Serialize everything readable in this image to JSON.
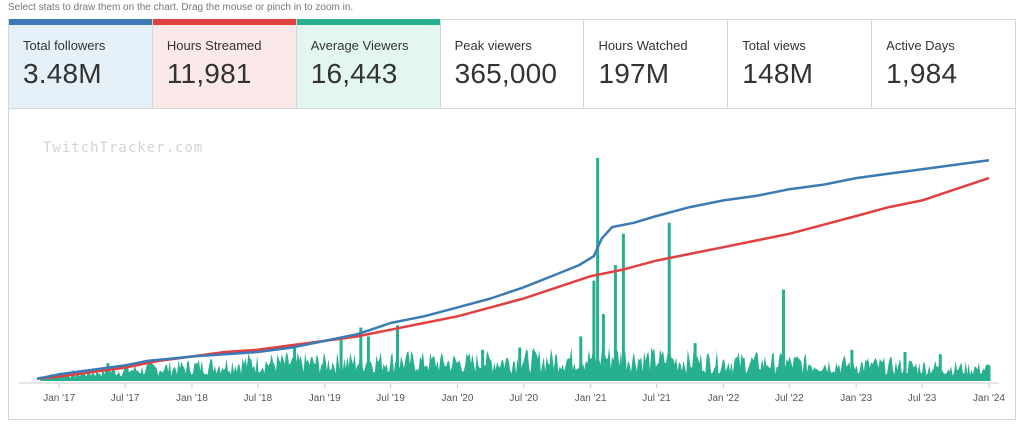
{
  "hint": "Select stats to draw them on the chart. Drag the mouse or pinch in to zoom in.",
  "stats": [
    {
      "label": "Total followers",
      "value": "3.48M",
      "accent": "#3c7ab5",
      "bg": "#e6f0f8",
      "selected": true
    },
    {
      "label": "Hours Streamed",
      "value": "11,981",
      "accent": "#e0403f",
      "bg": "#fbe8e8",
      "selected": true
    },
    {
      "label": "Average Viewers",
      "value": "16,443",
      "accent": "#27b08f",
      "bg": "#e4f6f0",
      "selected": true
    },
    {
      "label": "Peak viewers",
      "value": "365,000",
      "accent": "",
      "bg": "#ffffff",
      "selected": false
    },
    {
      "label": "Hours Watched",
      "value": "197M",
      "accent": "",
      "bg": "#ffffff",
      "selected": false
    },
    {
      "label": "Total views",
      "value": "148M",
      "accent": "",
      "bg": "#ffffff",
      "selected": false
    },
    {
      "label": "Active Days",
      "value": "1,984",
      "accent": "",
      "bg": "#ffffff",
      "selected": false
    }
  ],
  "watermark": "TwitchTracker.com",
  "chart_data": {
    "type": "line",
    "title": "",
    "xlabel": "",
    "ylabel": "",
    "grid": false,
    "legend": "none",
    "x_tick_labels": [
      "Jan '17",
      "Jul '17",
      "Jan '18",
      "Jul '18",
      "Jan '19",
      "Jul '19",
      "Jan '20",
      "Jul '20",
      "Jan '21",
      "Jul '21",
      "Jan '22",
      "Jul '22",
      "Jan '23",
      "Jul '23",
      "Jan '24"
    ],
    "x_range": [
      "2016-11",
      "2024-01"
    ],
    "y_range": [
      0,
      1
    ],
    "series": [
      {
        "key": "total_followers",
        "type": "line",
        "color": "#3c7ab5",
        "unit": "normalized",
        "points": [
          [
            "2016-11-01",
            0.01
          ],
          [
            "2017-01-01",
            0.03
          ],
          [
            "2017-04-01",
            0.05
          ],
          [
            "2017-07-01",
            0.07
          ],
          [
            "2017-09-01",
            0.09
          ],
          [
            "2017-11-01",
            0.1
          ],
          [
            "2018-01-01",
            0.11
          ],
          [
            "2018-04-01",
            0.12
          ],
          [
            "2018-07-01",
            0.13
          ],
          [
            "2018-10-01",
            0.15
          ],
          [
            "2019-01-01",
            0.18
          ],
          [
            "2019-04-01",
            0.21
          ],
          [
            "2019-07-01",
            0.26
          ],
          [
            "2019-10-01",
            0.29
          ],
          [
            "2020-01-01",
            0.33
          ],
          [
            "2020-04-01",
            0.37
          ],
          [
            "2020-07-01",
            0.42
          ],
          [
            "2020-10-01",
            0.48
          ],
          [
            "2020-12-01",
            0.52
          ],
          [
            "2021-01-10",
            0.56
          ],
          [
            "2021-02-01",
            0.64
          ],
          [
            "2021-03-01",
            0.69
          ],
          [
            "2021-05-01",
            0.71
          ],
          [
            "2021-07-01",
            0.74
          ],
          [
            "2021-10-01",
            0.78
          ],
          [
            "2022-01-01",
            0.81
          ],
          [
            "2022-04-01",
            0.83
          ],
          [
            "2022-07-01",
            0.86
          ],
          [
            "2022-10-01",
            0.88
          ],
          [
            "2023-01-01",
            0.91
          ],
          [
            "2023-04-01",
            0.93
          ],
          [
            "2023-07-01",
            0.95
          ],
          [
            "2023-10-01",
            0.97
          ],
          [
            "2024-01-01",
            0.99
          ]
        ]
      },
      {
        "key": "hours_streamed",
        "type": "line",
        "color": "#e0403f",
        "unit": "normalized",
        "points": [
          [
            "2016-11-01",
            0.01
          ],
          [
            "2017-01-01",
            0.02
          ],
          [
            "2017-04-01",
            0.04
          ],
          [
            "2017-07-01",
            0.06
          ],
          [
            "2017-10-01",
            0.09
          ],
          [
            "2018-01-01",
            0.11
          ],
          [
            "2018-04-01",
            0.13
          ],
          [
            "2018-07-01",
            0.14
          ],
          [
            "2018-10-01",
            0.16
          ],
          [
            "2019-01-01",
            0.18
          ],
          [
            "2019-04-01",
            0.2
          ],
          [
            "2019-07-01",
            0.23
          ],
          [
            "2019-10-01",
            0.26
          ],
          [
            "2020-01-01",
            0.29
          ],
          [
            "2020-04-01",
            0.33
          ],
          [
            "2020-07-01",
            0.37
          ],
          [
            "2020-10-01",
            0.42
          ],
          [
            "2021-01-01",
            0.47
          ],
          [
            "2021-04-01",
            0.5
          ],
          [
            "2021-07-01",
            0.54
          ],
          [
            "2021-10-01",
            0.57
          ],
          [
            "2022-01-01",
            0.6
          ],
          [
            "2022-04-01",
            0.63
          ],
          [
            "2022-07-01",
            0.66
          ],
          [
            "2022-10-01",
            0.7
          ],
          [
            "2023-01-01",
            0.74
          ],
          [
            "2023-04-01",
            0.78
          ],
          [
            "2023-07-01",
            0.81
          ],
          [
            "2023-10-01",
            0.86
          ],
          [
            "2024-01-01",
            0.91
          ]
        ]
      },
      {
        "key": "average_viewers",
        "type": "area",
        "color": "#27b08f",
        "unit": "normalized",
        "baseline_by_year": [
          [
            "2016-11-01",
            0.02
          ],
          [
            "2017-06-01",
            0.05
          ],
          [
            "2018-01-01",
            0.07
          ],
          [
            "2018-06-01",
            0.09
          ],
          [
            "2019-01-01",
            0.09
          ],
          [
            "2019-06-01",
            0.1
          ],
          [
            "2020-01-01",
            0.09
          ],
          [
            "2020-06-01",
            0.1
          ],
          [
            "2020-12-01",
            0.11
          ],
          [
            "2021-03-01",
            0.12
          ],
          [
            "2021-09-01",
            0.1
          ],
          [
            "2022-06-01",
            0.09
          ],
          [
            "2023-01-01",
            0.08
          ],
          [
            "2023-07-01",
            0.07
          ],
          [
            "2024-01-01",
            0.06
          ]
        ],
        "spikes": [
          [
            "2017-05-15",
            0.08
          ],
          [
            "2018-10-10",
            0.16
          ],
          [
            "2019-02-15",
            0.19
          ],
          [
            "2019-04-10",
            0.24
          ],
          [
            "2019-05-01",
            0.2
          ],
          [
            "2019-07-20",
            0.25
          ],
          [
            "2020-03-10",
            0.14
          ],
          [
            "2020-06-20",
            0.15
          ],
          [
            "2020-12-05",
            0.2
          ],
          [
            "2021-01-10",
            0.45
          ],
          [
            "2021-01-20",
            1.0
          ],
          [
            "2021-02-05",
            0.3
          ],
          [
            "2021-03-10",
            0.52
          ],
          [
            "2021-04-01",
            0.66
          ],
          [
            "2021-08-05",
            0.71
          ],
          [
            "2021-10-15",
            0.17
          ],
          [
            "2022-06-15",
            0.41
          ],
          [
            "2022-12-20",
            0.14
          ],
          [
            "2023-05-15",
            0.13
          ],
          [
            "2023-08-20",
            0.12
          ]
        ]
      }
    ]
  }
}
